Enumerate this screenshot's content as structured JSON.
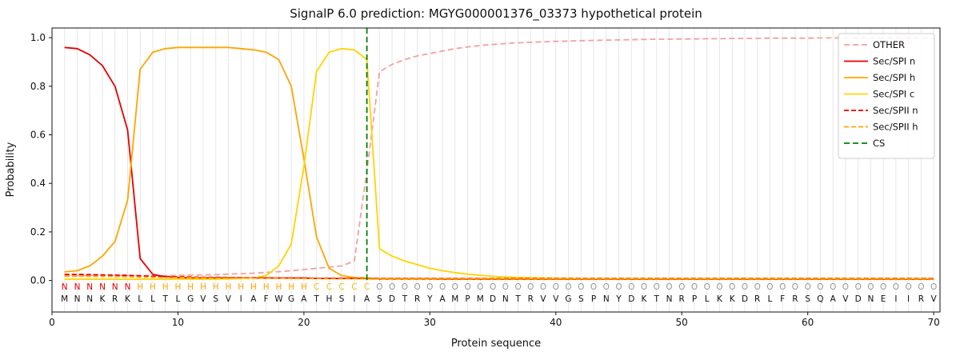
{
  "chart_data": {
    "type": "line",
    "title": "SignalP 6.0 prediction: MGYG000001376_03373 hypothetical protein",
    "xlabel": "Protein sequence",
    "ylabel": "Probability",
    "xlim": [
      0,
      70.5
    ],
    "ylim": [
      -0.13,
      1.04
    ],
    "x_ticks": [
      0,
      10,
      20,
      30,
      40,
      50,
      60,
      70
    ],
    "y_ticks": [
      0.0,
      0.2,
      0.4,
      0.6,
      0.8,
      1.0
    ],
    "sequence": "MNNKRKLLTLGVSVIAFWGATHSIASDTRYAMPMDNTRVVGSPNYDKTNRPLKKDRLFRSQAVDNEIIRV",
    "region_labels": "NNNNNNHHHHHHHHHHHHHHCCCCCOOOOOOOOOOOOOOOOOOOOOOOOOOOOOOOOOOOOOOOOOOOOO",
    "region_colors": {
      "N": "#e60000",
      "H": "#ffa500",
      "C": "#e8c400",
      "O": "#969696"
    },
    "cs_position": 25,
    "cs_color": "#008000",
    "colors": {
      "grid": "#e7e7e7",
      "spine": "#111111",
      "text": "#111111",
      "background": "#ffffff"
    },
    "series": [
      {
        "name": "OTHER",
        "color": "#f3a0a0",
        "dash": "7,4",
        "values": [
          0.02,
          0.02,
          0.02,
          0.02,
          0.02,
          0.02,
          0.02,
          0.02,
          0.02,
          0.021,
          0.022,
          0.023,
          0.024,
          0.026,
          0.028,
          0.03,
          0.033,
          0.036,
          0.04,
          0.045,
          0.05,
          0.055,
          0.06,
          0.08,
          0.45,
          0.86,
          0.89,
          0.91,
          0.925,
          0.935,
          0.945,
          0.955,
          0.962,
          0.968,
          0.972,
          0.976,
          0.979,
          0.981,
          0.983,
          0.985,
          0.986,
          0.988,
          0.989,
          0.99,
          0.991,
          0.992,
          0.993,
          0.994,
          0.994,
          0.995,
          0.995,
          0.996,
          0.996,
          0.997,
          0.997,
          0.997,
          0.998,
          0.998,
          0.998,
          0.998,
          0.999,
          0.999,
          0.999,
          0.999,
          0.999,
          0.999,
          0.999,
          0.999,
          0.999,
          0.999
        ]
      },
      {
        "name": "Sec/SPI n",
        "color": "#e60000",
        "dash": null,
        "values": [
          0.96,
          0.955,
          0.93,
          0.885,
          0.8,
          0.62,
          0.09,
          0.025,
          0.015,
          0.012,
          0.01,
          0.01,
          0.01,
          0.01,
          0.01,
          0.01,
          0.01,
          0.01,
          0.01,
          0.01,
          0.008,
          0.008,
          0.008,
          0.008,
          0.008,
          0.006,
          0.006,
          0.006,
          0.006,
          0.006,
          0.005,
          0.005,
          0.005,
          0.005,
          0.005,
          0.005,
          0.005,
          0.005,
          0.005,
          0.005,
          0.005,
          0.005,
          0.005,
          0.005,
          0.005,
          0.005,
          0.005,
          0.005,
          0.005,
          0.005,
          0.005,
          0.005,
          0.005,
          0.005,
          0.005,
          0.005,
          0.005,
          0.005,
          0.005,
          0.005,
          0.005,
          0.005,
          0.005,
          0.005,
          0.005,
          0.005,
          0.005,
          0.005,
          0.005,
          0.005
        ]
      },
      {
        "name": "Sec/SPI h",
        "color": "#ffa500",
        "dash": null,
        "values": [
          0.035,
          0.04,
          0.06,
          0.1,
          0.16,
          0.33,
          0.87,
          0.94,
          0.955,
          0.96,
          0.96,
          0.96,
          0.96,
          0.96,
          0.955,
          0.95,
          0.94,
          0.91,
          0.8,
          0.5,
          0.18,
          0.05,
          0.02,
          0.012,
          0.01,
          0.008,
          0.008,
          0.008,
          0.008,
          0.008,
          0.007,
          0.007,
          0.007,
          0.007,
          0.007,
          0.007,
          0.007,
          0.007,
          0.007,
          0.007,
          0.007,
          0.007,
          0.007,
          0.007,
          0.007,
          0.007,
          0.007,
          0.007,
          0.007,
          0.007,
          0.007,
          0.007,
          0.007,
          0.007,
          0.007,
          0.007,
          0.007,
          0.007,
          0.007,
          0.007,
          0.007,
          0.007,
          0.007,
          0.007,
          0.007,
          0.007,
          0.007,
          0.007,
          0.007,
          0.007
        ]
      },
      {
        "name": "Sec/SPI c",
        "color": "#ffd400",
        "dash": null,
        "values": [
          0.005,
          0.005,
          0.005,
          0.005,
          0.005,
          0.005,
          0.005,
          0.005,
          0.005,
          0.005,
          0.005,
          0.005,
          0.005,
          0.006,
          0.008,
          0.01,
          0.02,
          0.06,
          0.15,
          0.47,
          0.86,
          0.94,
          0.955,
          0.95,
          0.91,
          0.13,
          0.1,
          0.08,
          0.065,
          0.05,
          0.04,
          0.032,
          0.026,
          0.021,
          0.017,
          0.014,
          0.012,
          0.011,
          0.01,
          0.009,
          0.009,
          0.008,
          0.008,
          0.008,
          0.008,
          0.008,
          0.008,
          0.008,
          0.008,
          0.008,
          0.008,
          0.008,
          0.008,
          0.008,
          0.008,
          0.008,
          0.008,
          0.008,
          0.008,
          0.008,
          0.008,
          0.008,
          0.008,
          0.008,
          0.008,
          0.008,
          0.008,
          0.008,
          0.008,
          0.008
        ]
      },
      {
        "name": "Sec/SPII n",
        "color": "#e60000",
        "dash": "6,3",
        "values": [
          0.025,
          0.025,
          0.024,
          0.023,
          0.022,
          0.021,
          0.019,
          0.017,
          0.016,
          0.015,
          0.014,
          0.013,
          0.013,
          0.012,
          0.012,
          0.011,
          0.011,
          0.01,
          0.01,
          0.01,
          0.009,
          0.009,
          0.009,
          0.009,
          0.008,
          0.008,
          0.008,
          0.008,
          0.008,
          0.008,
          0.008,
          0.008,
          0.008,
          0.008,
          0.008,
          0.008,
          0.008,
          0.008,
          0.008,
          0.008,
          0.008,
          0.008,
          0.008,
          0.008,
          0.008,
          0.008,
          0.008,
          0.008,
          0.008,
          0.008,
          0.008,
          0.008,
          0.008,
          0.008,
          0.008,
          0.008,
          0.008,
          0.008,
          0.008,
          0.008,
          0.008,
          0.008,
          0.008,
          0.008,
          0.008,
          0.008,
          0.008,
          0.008,
          0.008,
          0.008
        ]
      },
      {
        "name": "Sec/SPII h",
        "color": "#ffa500",
        "dash": "6,3",
        "values": [
          0.018,
          0.018,
          0.017,
          0.017,
          0.016,
          0.015,
          0.014,
          0.013,
          0.012,
          0.012,
          0.011,
          0.011,
          0.01,
          0.01,
          0.01,
          0.009,
          0.009,
          0.009,
          0.008,
          0.008,
          0.008,
          0.007,
          0.007,
          0.007,
          0.006,
          0.006,
          0.006,
          0.006,
          0.006,
          0.006,
          0.006,
          0.006,
          0.006,
          0.006,
          0.006,
          0.006,
          0.006,
          0.006,
          0.006,
          0.006,
          0.006,
          0.006,
          0.006,
          0.006,
          0.006,
          0.006,
          0.006,
          0.006,
          0.006,
          0.006,
          0.006,
          0.006,
          0.006,
          0.006,
          0.006,
          0.006,
          0.006,
          0.006,
          0.006,
          0.006,
          0.006,
          0.006,
          0.006,
          0.006,
          0.006,
          0.006,
          0.006,
          0.006,
          0.006,
          0.006
        ]
      }
    ],
    "legend": [
      {
        "label": "OTHER",
        "color": "#f3a0a0",
        "dash": "7,4"
      },
      {
        "label": "Sec/SPI n",
        "color": "#e60000",
        "dash": null
      },
      {
        "label": "Sec/SPI h",
        "color": "#ffa500",
        "dash": null
      },
      {
        "label": "Sec/SPI c",
        "color": "#ffd400",
        "dash": null
      },
      {
        "label": "Sec/SPII n",
        "color": "#e60000",
        "dash": "6,3"
      },
      {
        "label": "Sec/SPII h",
        "color": "#ffa500",
        "dash": "6,3"
      },
      {
        "label": "CS",
        "color": "#008000",
        "dash": "7,4"
      }
    ]
  }
}
